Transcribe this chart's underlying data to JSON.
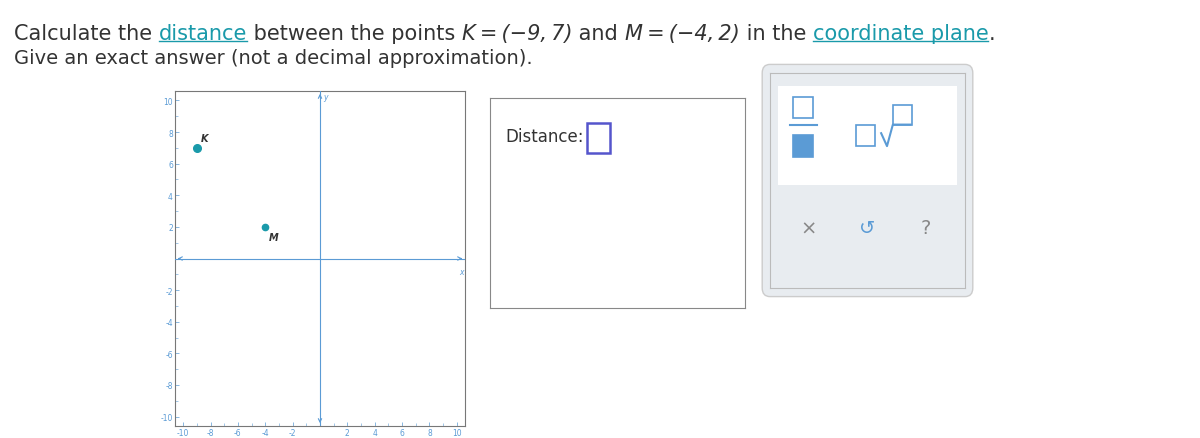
{
  "parts1": [
    [
      "Calculate the ",
      "#333333",
      false,
      false
    ],
    [
      "distance",
      "#1a9aaa",
      false,
      true
    ],
    [
      " between the points ",
      "#333333",
      false,
      false
    ],
    [
      "K = (−9, 7)",
      "#333333",
      true,
      false
    ],
    [
      " and ",
      "#333333",
      false,
      false
    ],
    [
      "M = (−4, 2)",
      "#333333",
      true,
      false
    ],
    [
      " in the ",
      "#333333",
      false,
      false
    ],
    [
      "coordinate plane",
      "#1a9aaa",
      false,
      true
    ],
    [
      ".",
      "#333333",
      false,
      false
    ]
  ],
  "subtitle": "Give an exact answer (not a decimal approximation).",
  "point_K": [
    -9,
    7
  ],
  "point_M": [
    -4,
    2
  ],
  "label_K": "K",
  "label_M": "M",
  "point_color": "#1a9aaa",
  "axis_color": "#5b9bd5",
  "tick_label_color": "#5b9bd5",
  "grid_range": [
    -10,
    10
  ],
  "distance_label": "Distance:",
  "bg_color": "#ffffff",
  "box_color": "#666666",
  "text_color": "#333333",
  "link_color": "#1a9aaa",
  "input_box_color": "#5555cc",
  "kb_bg": "#e8ecf0",
  "kb_top_bg": "#f0f4f8",
  "kb_symbol_color": "#5b9bd5",
  "kb_x_color": "#888888",
  "kb_undo_color": "#5b9bd5",
  "kb_q_color": "#888888",
  "title_fontsize": 15,
  "subtitle_fontsize": 14,
  "tick_fontsize": 5.5
}
